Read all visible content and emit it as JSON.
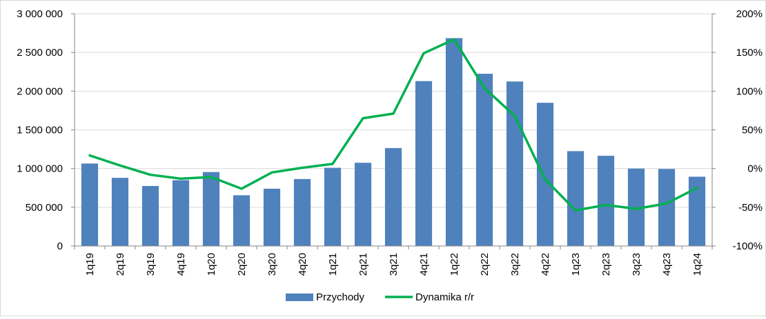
{
  "chart_data": {
    "type": "bar",
    "categories": [
      "1q19",
      "2q19",
      "3q19",
      "4q19",
      "1q20",
      "2q20",
      "3q20",
      "4q20",
      "1q21",
      "2q21",
      "3q21",
      "4q21",
      "1q22",
      "2q22",
      "3q22",
      "4q22",
      "1q23",
      "2q23",
      "3q23",
      "4q23",
      "1q24"
    ],
    "series": [
      {
        "name": "Przychody",
        "type": "bar",
        "axis": "left",
        "color": "#4F81BD",
        "values": [
          1065000,
          880000,
          775000,
          850000,
          955000,
          655000,
          740000,
          865000,
          1010000,
          1075000,
          1265000,
          2130000,
          2685000,
          2225000,
          2125000,
          1850000,
          1225000,
          1165000,
          1000000,
          995000,
          895000
        ]
      },
      {
        "name": "Dynamika r/r",
        "type": "line",
        "axis": "right",
        "color": "#00B050",
        "values": [
          17,
          4,
          -8,
          -13,
          -11,
          -26,
          -5,
          1,
          6,
          65,
          71,
          149,
          167,
          104,
          68,
          -14,
          -54,
          -47,
          -52,
          -45,
          -25
        ]
      }
    ],
    "y_left": {
      "range": [
        0,
        3000000
      ],
      "ticks": [
        0,
        500000,
        1000000,
        1500000,
        2000000,
        2500000,
        3000000
      ],
      "tick_labels": [
        "0",
        "500 000",
        "1 000 000",
        "1 500 000",
        "2 000 000",
        "2 500 000",
        "3 000 000"
      ]
    },
    "y_right": {
      "range": [
        -100,
        200
      ],
      "ticks": [
        -100,
        -50,
        0,
        50,
        100,
        150,
        200
      ],
      "tick_labels": [
        "-100%",
        "-50%",
        "0%",
        "50%",
        "100%",
        "150%",
        "200%"
      ]
    },
    "grid": true,
    "legend_position": "bottom"
  }
}
